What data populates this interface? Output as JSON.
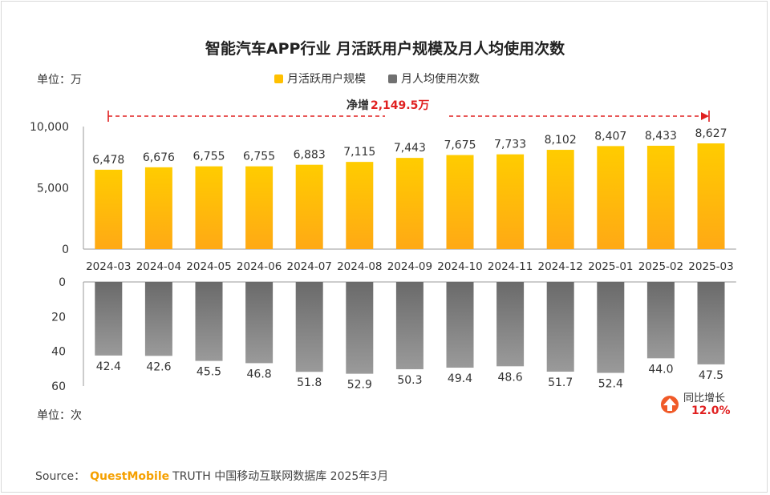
{
  "title": "智能汽车APP行业 月活跃用户规模及月人均使用次数",
  "unit_top": "单位：万",
  "unit_bottom": "单位：次",
  "net_increase": {
    "prefix": "净增",
    "value": "2,149.5万"
  },
  "growth": {
    "label": "同比增长",
    "value": "12.0%"
  },
  "source": {
    "label": "Source：",
    "brand": "QuestMobile",
    "text": "TRUTH 中国移动互联网数据库 2025年3月"
  },
  "colors": {
    "mau_bar": "#ffc000",
    "usage_bar": "#808080",
    "accent_red": "#e02020",
    "growth_icon": "#f05a28"
  },
  "chart_data": [
    {
      "type": "bar",
      "categories": [
        "2024-03",
        "2024-04",
        "2024-05",
        "2024-06",
        "2024-07",
        "2024-08",
        "2024-09",
        "2024-10",
        "2024-11",
        "2024-12",
        "2025-01",
        "2025-02",
        "2025-03"
      ],
      "series": [
        {
          "name": "月活跃用户规模",
          "values": [
            6478,
            6676,
            6755,
            6755,
            6883,
            7115,
            7443,
            7675,
            7733,
            8102,
            8407,
            8433,
            8627
          ]
        }
      ],
      "data_labels": [
        "6,478",
        "6,676",
        "6,755",
        "6,755",
        "6,883",
        "7,115",
        "7,443",
        "7,675",
        "7,733",
        "8,102",
        "8,407",
        "8,433",
        "8,627"
      ],
      "yticks": [
        "0",
        "5,000",
        "10,000"
      ],
      "ylim": [
        0,
        10000
      ]
    },
    {
      "type": "bar",
      "categories": [
        "2024-03",
        "2024-04",
        "2024-05",
        "2024-06",
        "2024-07",
        "2024-08",
        "2024-09",
        "2024-10",
        "2024-11",
        "2024-12",
        "2025-01",
        "2025-02",
        "2025-03"
      ],
      "series": [
        {
          "name": "月人均使用次数",
          "values": [
            42.4,
            42.6,
            45.5,
            46.8,
            51.8,
            52.9,
            50.3,
            49.4,
            48.6,
            51.7,
            52.4,
            44.0,
            47.5
          ]
        }
      ],
      "data_labels": [
        "42.4",
        "42.6",
        "45.5",
        "46.8",
        "51.8",
        "52.9",
        "50.3",
        "49.4",
        "48.6",
        "51.7",
        "52.4",
        "44.0",
        "47.5"
      ],
      "yticks": [
        "0",
        "20",
        "40",
        "60"
      ],
      "ylim": [
        0,
        60
      ],
      "inverted": true
    }
  ]
}
